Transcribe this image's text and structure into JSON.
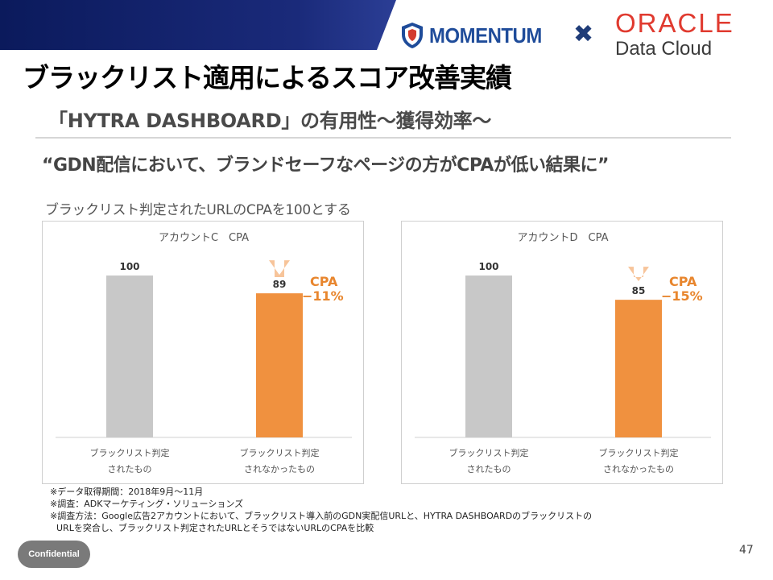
{
  "header": {
    "brand_left": "MOMENTUM",
    "separator": "✖",
    "brand_right_line1": "ORACLE",
    "brand_right_line2": "Data Cloud",
    "colors": {
      "band": "#0b1a5c",
      "momentum": "#1f4c9a",
      "oracle": "#e03a2f"
    }
  },
  "page_title": "ブラックリスト適用によるスコア改善実績",
  "subtitle": "「HYTRA DASHBOARD」の有用性〜獲得効率〜",
  "quote": "“GDN配信において、ブランドセーフなページの方がCPAが低い結果に”",
  "note": "ブラックリスト判定されたURLのCPAを100とする",
  "chart_data": [
    {
      "type": "bar",
      "title": "アカウントC　CPA",
      "categories": [
        [
          "ブラックリスト判定",
          "されたもの"
        ],
        [
          "ブラックリスト判定",
          "されなかったもの"
        ]
      ],
      "values": [
        100,
        89
      ],
      "ylim": [
        0,
        100
      ],
      "bar_colors": [
        "#c8c8c8",
        "#f0913f"
      ],
      "annotation": [
        "CPA",
        "−11%"
      ],
      "annotation_color": "#e8862e",
      "arrow_color": "#f7c49a"
    },
    {
      "type": "bar",
      "title": "アカウントD　CPA",
      "categories": [
        [
          "ブラックリスト判定",
          "されたもの"
        ],
        [
          "ブラックリスト判定",
          "されなかったもの"
        ]
      ],
      "values": [
        100,
        85
      ],
      "ylim": [
        0,
        100
      ],
      "bar_colors": [
        "#c8c8c8",
        "#f0913f"
      ],
      "annotation": [
        "CPA",
        "−15%"
      ],
      "annotation_color": "#e8862e",
      "arrow_color": "#f7c49a"
    }
  ],
  "footnotes": [
    "※データ取得期間：2018年9月〜11月",
    "※調査：ADKマーケティング・ソリューションズ",
    "※調査方法：Google広告2アカウントにおいて、ブラックリスト導入前のGDN実配信URLと、HYTRA DASHBOARDのブラックリストの",
    "URLを突合し、ブラックリスト判定されたURLとそうではないURLのCPAを比較"
  ],
  "footer": {
    "confidential": "Confidential",
    "page_number": "47"
  }
}
